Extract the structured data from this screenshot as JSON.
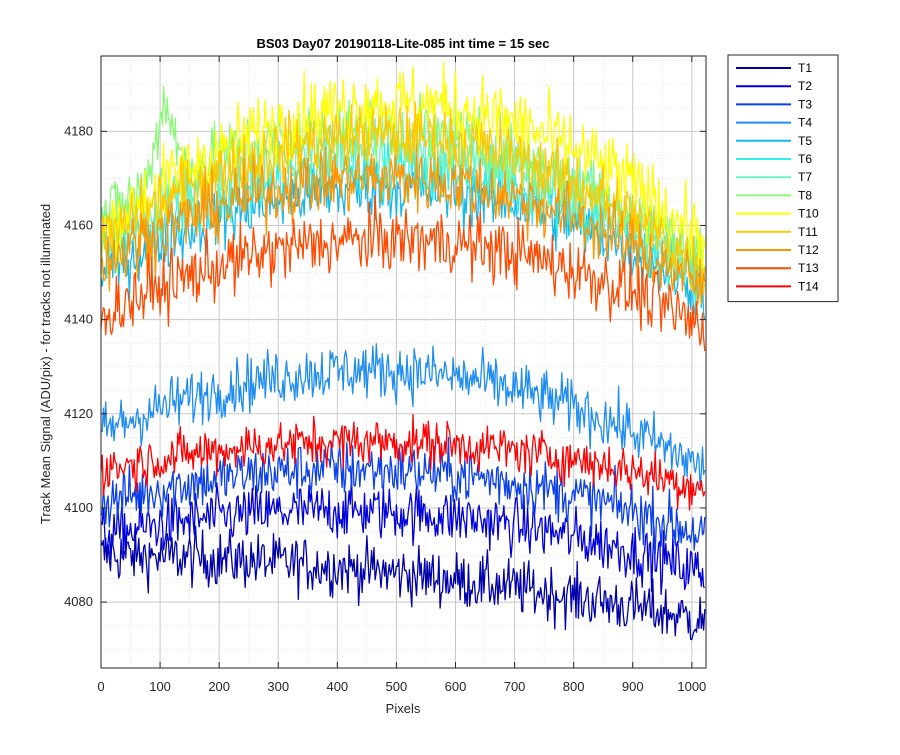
{
  "chart_data": {
    "type": "line",
    "title": "BS03 Day07 20190118-Lite-085 int time = 15 sec",
    "xlabel": "Pixels",
    "ylabel": "Track Mean Signal (ADU/pix) - for tracks not illuminated",
    "xlim": [
      0,
      1024
    ],
    "ylim": [
      4066,
      4196
    ],
    "xticks": [
      0,
      100,
      200,
      300,
      400,
      500,
      600,
      700,
      800,
      900,
      1000
    ],
    "yticks": [
      4080,
      4100,
      4120,
      4140,
      4160,
      4180
    ],
    "grid": true,
    "legend_position": "outside-top-right",
    "series": [
      {
        "name": "T1",
        "color": "#0000a8",
        "start": 4090,
        "peak": 4086,
        "end": 4076,
        "noise": 3.0
      },
      {
        "name": "T2",
        "color": "#0000d8",
        "start": 4094,
        "peak": 4099,
        "end": 4086,
        "noise": 3.0
      },
      {
        "name": "T3",
        "color": "#0b3fe8",
        "start": 4101,
        "peak": 4108,
        "end": 4094,
        "noise": 3.0
      },
      {
        "name": "T4",
        "color": "#1e8cf0",
        "start": 4116,
        "peak": 4129,
        "end": 4108,
        "noise": 3.0
      },
      {
        "name": "T5",
        "color": "#16b8ea",
        "start": 4150,
        "peak": 4168,
        "end": 4146,
        "noise": 3.5
      },
      {
        "name": "T6",
        "color": "#2ff0e6",
        "start": 4154,
        "peak": 4172,
        "end": 4148,
        "noise": 3.5
      },
      {
        "name": "T7",
        "color": "#6ef2c8",
        "start": 4157,
        "peak": 4176,
        "end": 4150,
        "noise": 3.5
      },
      {
        "name": "T8",
        "color": "#8cf87a",
        "start": 4162,
        "peak": 4180,
        "end": 4152,
        "noise": 3.5
      },
      {
        "name": "T10",
        "color": "#ffff00",
        "start": 4158,
        "peak": 4186,
        "end": 4156,
        "noise": 4.0
      },
      {
        "name": "T11",
        "color": "#ffc800",
        "start": 4156,
        "peak": 4179,
        "end": 4150,
        "noise": 3.5
      },
      {
        "name": "T12",
        "color": "#ff9600",
        "start": 4152,
        "peak": 4170,
        "end": 4146,
        "noise": 3.5
      },
      {
        "name": "T13",
        "color": "#ff4a00",
        "start": 4141,
        "peak": 4157,
        "end": 4138,
        "noise": 3.5
      },
      {
        "name": "T14",
        "color": "#ff0000",
        "start": 4108,
        "peak": 4114,
        "end": 4104,
        "noise": 2.5
      }
    ]
  }
}
